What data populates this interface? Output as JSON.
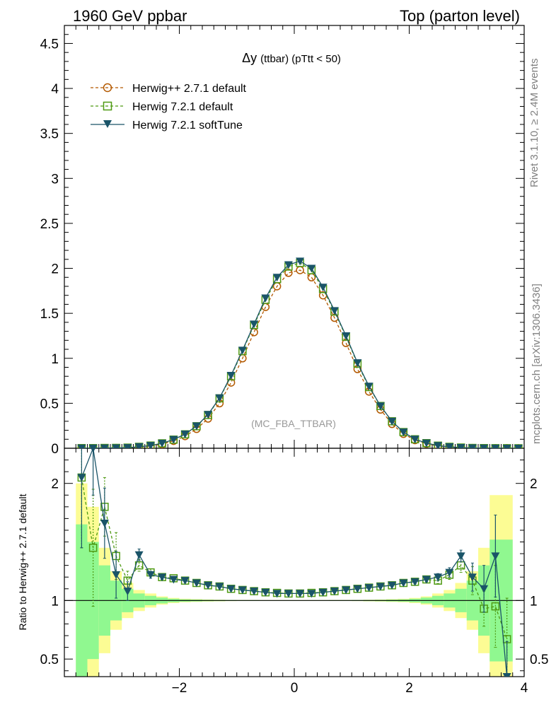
{
  "header": {
    "left": "1960 GeV ppbar",
    "right": "Top (parton level)"
  },
  "plot_title": {
    "symbol": "Δy",
    "rest": "(ttbar) (pTtt < 50)"
  },
  "watermark": "(MC_FBA_TTBAR)",
  "side_text": {
    "rivet": "Rivet 3.1.10, ≥ 2.4M events",
    "mcplots": "mcplots.cern.ch [arXiv:1306.3436]"
  },
  "colors": {
    "herwigpp": "#b35900",
    "herwig721": "#4f9a13",
    "softtune": "#1a5468",
    "band_inner": "#90f890",
    "band_outer": "#fcfc94"
  },
  "chart_data": [
    {
      "type": "line",
      "panel": "main",
      "title": "Δy (ttbar) (pTtt < 50)",
      "xlim": [
        -4.0,
        4.0
      ],
      "ylim": [
        0,
        4.7
      ],
      "y_ticks": [
        "0",
        "0.5",
        "1",
        "1.5",
        "2",
        "2.5",
        "3",
        "3.5",
        "4",
        "4.5"
      ],
      "x": [
        -3.7,
        -3.5,
        -3.3,
        -3.1,
        -2.9,
        -2.7,
        -2.5,
        -2.3,
        -2.1,
        -1.9,
        -1.7,
        -1.5,
        -1.3,
        -1.1,
        -0.9,
        -0.7,
        -0.5,
        -0.3,
        -0.1,
        0.1,
        0.3,
        0.5,
        0.7,
        0.9,
        1.1,
        1.3,
        1.5,
        1.7,
        1.9,
        2.1,
        2.3,
        2.5,
        2.7,
        2.9,
        3.1,
        3.3,
        3.5,
        3.7,
        3.9
      ],
      "series": [
        {
          "name": "Herwig++ 2.7.1 default",
          "marker": "open-circle",
          "style": "dashed",
          "values": [
            0.001,
            0.001,
            0.002,
            0.003,
            0.006,
            0.012,
            0.024,
            0.046,
            0.082,
            0.135,
            0.215,
            0.33,
            0.5,
            0.73,
            1.0,
            1.29,
            1.57,
            1.8,
            1.95,
            1.98,
            1.9,
            1.7,
            1.45,
            1.17,
            0.88,
            0.63,
            0.43,
            0.27,
            0.16,
            0.09,
            0.05,
            0.025,
            0.013,
            0.006,
            0.003,
            0.002,
            0.001,
            0.001,
            0.0
          ]
        },
        {
          "name": "Herwig 7.2.1 default",
          "marker": "open-square",
          "style": "dashed",
          "values": [
            0.002,
            0.0015,
            0.0035,
            0.0042,
            0.007,
            0.016,
            0.03,
            0.055,
            0.096,
            0.155,
            0.245,
            0.37,
            0.555,
            0.8,
            1.08,
            1.37,
            1.65,
            1.88,
            2.02,
            2.06,
            1.98,
            1.77,
            1.52,
            1.24,
            0.94,
            0.68,
            0.47,
            0.3,
            0.18,
            0.1,
            0.057,
            0.029,
            0.016,
            0.008,
            0.0035,
            0.0019,
            0.001,
            0.0007,
            0.0
          ]
        },
        {
          "name": "Herwig 7.2.1 softTune",
          "marker": "filled-triangle-down",
          "style": "solid",
          "values": [
            0.002,
            0.002,
            0.0034,
            0.0037,
            0.0066,
            0.017,
            0.03,
            0.055,
            0.097,
            0.157,
            0.248,
            0.375,
            0.56,
            0.81,
            1.09,
            1.38,
            1.67,
            1.9,
            2.04,
            2.08,
            2.0,
            1.79,
            1.53,
            1.25,
            0.95,
            0.69,
            0.47,
            0.3,
            0.18,
            0.1,
            0.058,
            0.029,
            0.016,
            0.008,
            0.0035,
            0.0022,
            0.0014,
            0.0,
            0.0
          ]
        }
      ]
    },
    {
      "type": "line",
      "panel": "ratio",
      "ylabel": "Ratio to Herwig++ 2.7.1 default",
      "xlim": [
        -4.0,
        4.0
      ],
      "ylim": [
        0.35,
        2.3
      ],
      "y_ticks": [
        "0.5",
        "1",
        "2"
      ],
      "x_ticks": [
        "−2",
        "0",
        "2",
        "4"
      ],
      "x": [
        -3.7,
        -3.5,
        -3.3,
        -3.1,
        -2.9,
        -2.7,
        -2.5,
        -2.3,
        -2.1,
        -1.9,
        -1.7,
        -1.5,
        -1.3,
        -1.1,
        -0.9,
        -0.7,
        -0.5,
        -0.3,
        -0.1,
        0.1,
        0.3,
        0.5,
        0.7,
        0.9,
        1.1,
        1.3,
        1.5,
        1.7,
        1.9,
        2.1,
        2.3,
        2.5,
        2.7,
        2.9,
        3.1,
        3.3,
        3.5,
        3.7
      ],
      "series": [
        {
          "name": "Herwig 7.2.1 default",
          "values": [
            2.05,
            1.45,
            1.8,
            1.38,
            1.17,
            1.3,
            1.24,
            1.2,
            1.19,
            1.17,
            1.15,
            1.13,
            1.12,
            1.1,
            1.09,
            1.08,
            1.07,
            1.065,
            1.06,
            1.06,
            1.065,
            1.07,
            1.08,
            1.09,
            1.1,
            1.11,
            1.12,
            1.13,
            1.15,
            1.16,
            1.18,
            1.17,
            1.22,
            1.3,
            1.17,
            0.93,
            0.95,
            0.67
          ],
          "err": [
            0.6,
            0.5,
            0.25,
            0.2,
            0.08,
            0.05,
            0.03,
            0.02,
            0.015,
            0.01,
            0.01,
            0.01,
            0.01,
            0.01,
            0.01,
            0.01,
            0.01,
            0.01,
            0.01,
            0.01,
            0.01,
            0.01,
            0.01,
            0.01,
            0.01,
            0.01,
            0.01,
            0.01,
            0.01,
            0.015,
            0.02,
            0.025,
            0.04,
            0.06,
            0.12,
            0.15,
            0.35,
            0.35
          ]
        },
        {
          "name": "Herwig 7.2.1 softTune",
          "values": [
            2.05,
            2.3,
            1.66,
            1.22,
            1.08,
            1.39,
            1.22,
            1.2,
            1.18,
            1.17,
            1.15,
            1.13,
            1.12,
            1.1,
            1.09,
            1.08,
            1.07,
            1.06,
            1.06,
            1.06,
            1.06,
            1.07,
            1.08,
            1.09,
            1.1,
            1.11,
            1.12,
            1.13,
            1.15,
            1.16,
            1.18,
            1.2,
            1.24,
            1.38,
            1.2,
            1.1,
            1.38,
            0.35
          ],
          "err": [
            0.6,
            0.4,
            0.3,
            0.2,
            0.08,
            0.05,
            0.03,
            0.02,
            0.015,
            0.01,
            0.01,
            0.01,
            0.01,
            0.01,
            0.01,
            0.01,
            0.01,
            0.01,
            0.01,
            0.01,
            0.01,
            0.01,
            0.01,
            0.01,
            0.01,
            0.01,
            0.01,
            0.01,
            0.01,
            0.015,
            0.02,
            0.03,
            0.04,
            0.05,
            0.12,
            0.2,
            0.35,
            0.3
          ]
        }
      ],
      "band_x_edges": [
        -3.8,
        -3.6,
        -3.4,
        -3.2,
        -3.0,
        -2.8,
        -2.6,
        -2.4,
        -2.2,
        -2.0,
        -1.8,
        -1.6,
        -1.4,
        -1.2,
        -1.0,
        -0.8,
        -0.6,
        -0.4,
        -0.2,
        0.0,
        0.2,
        0.4,
        0.6,
        0.8,
        1.0,
        1.2,
        1.4,
        1.6,
        1.8,
        2.0,
        2.2,
        2.4,
        2.6,
        2.8,
        3.0,
        3.2,
        3.4,
        3.6,
        3.8
      ],
      "band_inner_half": [
        0.65,
        0.5,
        0.3,
        0.17,
        0.1,
        0.06,
        0.04,
        0.025,
        0.015,
        0.01,
        0.008,
        0.006,
        0.005,
        0.004,
        0.003,
        0.003,
        0.002,
        0.002,
        0.002,
        0.002,
        0.002,
        0.002,
        0.003,
        0.003,
        0.004,
        0.005,
        0.006,
        0.008,
        0.01,
        0.015,
        0.025,
        0.04,
        0.06,
        0.1,
        0.17,
        0.3,
        0.52,
        0.52
      ],
      "band_outer_half": [
        1.0,
        0.8,
        0.45,
        0.25,
        0.15,
        0.09,
        0.06,
        0.035,
        0.022,
        0.015,
        0.012,
        0.009,
        0.007,
        0.005,
        0.004,
        0.004,
        0.003,
        0.003,
        0.003,
        0.003,
        0.003,
        0.003,
        0.004,
        0.004,
        0.005,
        0.007,
        0.009,
        0.012,
        0.015,
        0.022,
        0.035,
        0.06,
        0.09,
        0.15,
        0.25,
        0.45,
        0.9,
        0.9
      ]
    }
  ]
}
